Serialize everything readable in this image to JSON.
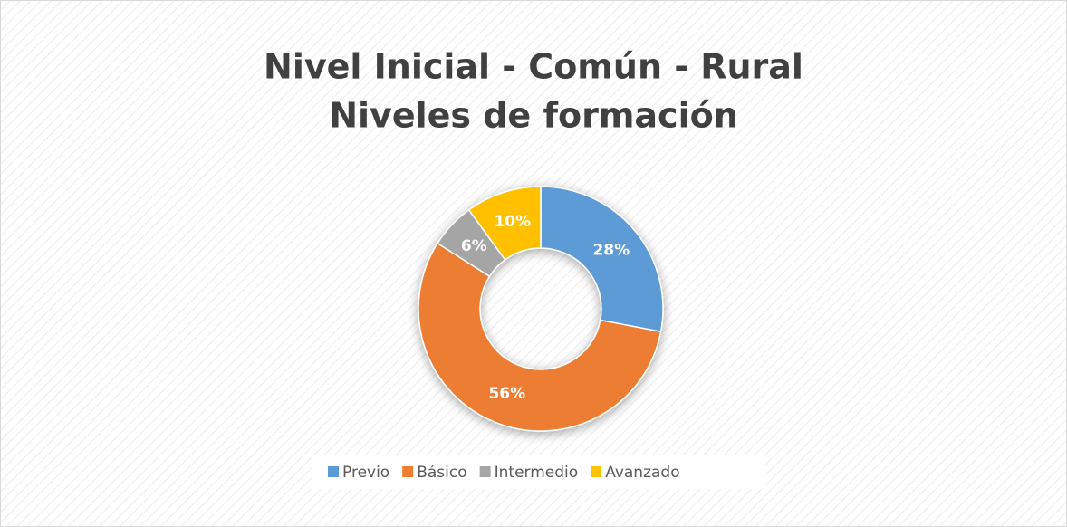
{
  "chart_data": {
    "type": "pie",
    "title": "Nivel Inicial - Común - Rural",
    "subtitle": "Niveles de formación",
    "categories": [
      "Previo",
      "Básico",
      "Intermedio",
      "Avanzado"
    ],
    "values": [
      28,
      56,
      6,
      10
    ],
    "value_labels": [
      "28%",
      "56%",
      "6%",
      "10%"
    ],
    "colors": [
      "#5b9bd5",
      "#ed7d31",
      "#a5a5a5",
      "#ffc000"
    ],
    "legend": "bottom"
  }
}
